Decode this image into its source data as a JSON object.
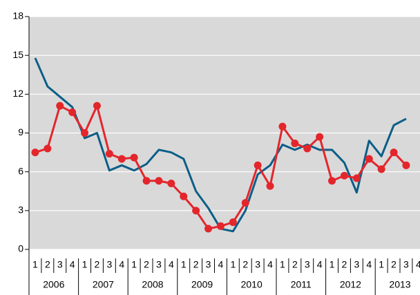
{
  "chart_data": {
    "type": "line",
    "categories": [
      "1",
      "2",
      "3",
      "4",
      "1",
      "2",
      "3",
      "4",
      "1",
      "2",
      "3",
      "4",
      "1",
      "2",
      "3",
      "4",
      "1",
      "2",
      "3",
      "4",
      "1",
      "2",
      "3",
      "4",
      "1",
      "2",
      "3",
      "4",
      "1",
      "2",
      "3",
      "4"
    ],
    "years": [
      "2006",
      "2007",
      "2008",
      "2009",
      "2010",
      "2011",
      "2012",
      "2013"
    ],
    "series": [
      {
        "color": "#0b5e87",
        "marker": false,
        "values": [
          14.8,
          12.6,
          11.8,
          11.0,
          8.6,
          9.0,
          6.1,
          6.5,
          6.1,
          6.6,
          7.7,
          7.5,
          7.0,
          4.5,
          3.2,
          1.6,
          1.4,
          3.0,
          5.8,
          6.5,
          8.1,
          7.7,
          8.1,
          7.7,
          7.7,
          6.7,
          4.4,
          8.4,
          7.2,
          9.6,
          10.1,
          null
        ]
      },
      {
        "color": "#e3262c",
        "marker": true,
        "values": [
          7.5,
          7.8,
          11.1,
          10.6,
          9.0,
          11.1,
          7.4,
          7.0,
          7.1,
          5.3,
          5.3,
          5.1,
          4.1,
          3.0,
          1.6,
          1.8,
          2.1,
          3.6,
          6.5,
          4.9,
          9.5,
          8.2,
          7.8,
          8.7,
          5.3,
          5.7,
          5.5,
          7.0,
          6.2,
          7.5,
          6.5,
          null
        ]
      }
    ],
    "ylim": [
      0,
      18
    ],
    "yticks": [
      0,
      3,
      6,
      9,
      12,
      15,
      18
    ],
    "grid": true
  }
}
